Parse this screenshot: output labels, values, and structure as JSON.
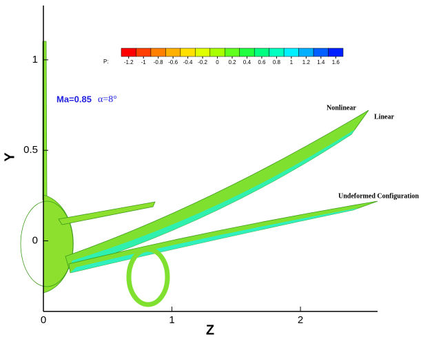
{
  "chart_data": {
    "type": "contour",
    "x_label": "Z",
    "y_label": "Y",
    "xlim": [
      0,
      2.6
    ],
    "ylim": [
      -0.39,
      1.3
    ],
    "xticks": [
      0,
      1,
      2
    ],
    "yticks": [
      0,
      0.5,
      1
    ],
    "colorbar": {
      "label": "P:",
      "lim": [
        -1.3,
        1.7
      ],
      "ticks": [
        -1.2,
        -1,
        -0.8,
        -0.6,
        -0.4,
        -0.2,
        0,
        0.2,
        0.4,
        0.6,
        0.8,
        1,
        1.2,
        1.4,
        1.6
      ],
      "colors": [
        "#ff0000",
        "#ff4000",
        "#ff8000",
        "#ffb000",
        "#ffe000",
        "#e0ff00",
        "#a8ff00",
        "#60ff20",
        "#20ff40",
        "#00ff80",
        "#00ffc0",
        "#00f0ff",
        "#00b0ff",
        "#0060ff",
        "#0020ff"
      ]
    },
    "annotations": {
      "mach": "Ma=0.85",
      "alpha": "α=8°",
      "nonlinear": "Nonlinear",
      "linear": "Linear",
      "undeformed": "Undeformed Configuration"
    }
  }
}
